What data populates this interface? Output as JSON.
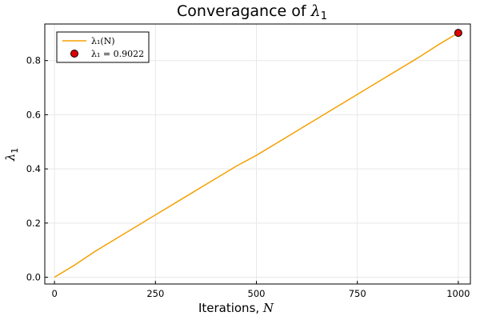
{
  "chart_data": {
    "type": "line",
    "title_text": "Converagance of ",
    "title_math": "λ",
    "title_sub": "1",
    "xlabel_text": "Iterations, ",
    "xlabel_math": "N",
    "ylabel_math": "λ",
    "ylabel_sub": "1",
    "xlim": [
      -24,
      1030
    ],
    "ylim": [
      -0.025,
      0.935
    ],
    "x_ticks": [
      0,
      250,
      500,
      750,
      1000
    ],
    "x_tick_labels": [
      "0",
      "250",
      "500",
      "750",
      "1000"
    ],
    "y_ticks": [
      0.0,
      0.2,
      0.4,
      0.6,
      0.8
    ],
    "y_tick_labels": [
      "0.0",
      "0.2",
      "0.4",
      "0.6",
      "0.8"
    ],
    "grid": true,
    "legend_position": "top-left",
    "series": [
      {
        "name": "λ₁(N)",
        "kind": "line",
        "color": "#f5a000",
        "x": [
          0,
          50,
          100,
          150,
          200,
          250,
          300,
          350,
          400,
          450,
          500,
          550,
          600,
          650,
          700,
          750,
          800,
          850,
          900,
          950,
          1000
        ],
        "y": [
          0.0,
          0.045,
          0.095,
          0.14,
          0.185,
          0.23,
          0.275,
          0.32,
          0.365,
          0.41,
          0.45,
          0.495,
          0.54,
          0.585,
          0.63,
          0.675,
          0.72,
          0.765,
          0.81,
          0.858,
          0.9022
        ]
      },
      {
        "name": "λ₁ = 0.9022",
        "kind": "scatter",
        "color": "#e00000",
        "x": [
          1000
        ],
        "y": [
          0.9022
        ]
      }
    ]
  }
}
